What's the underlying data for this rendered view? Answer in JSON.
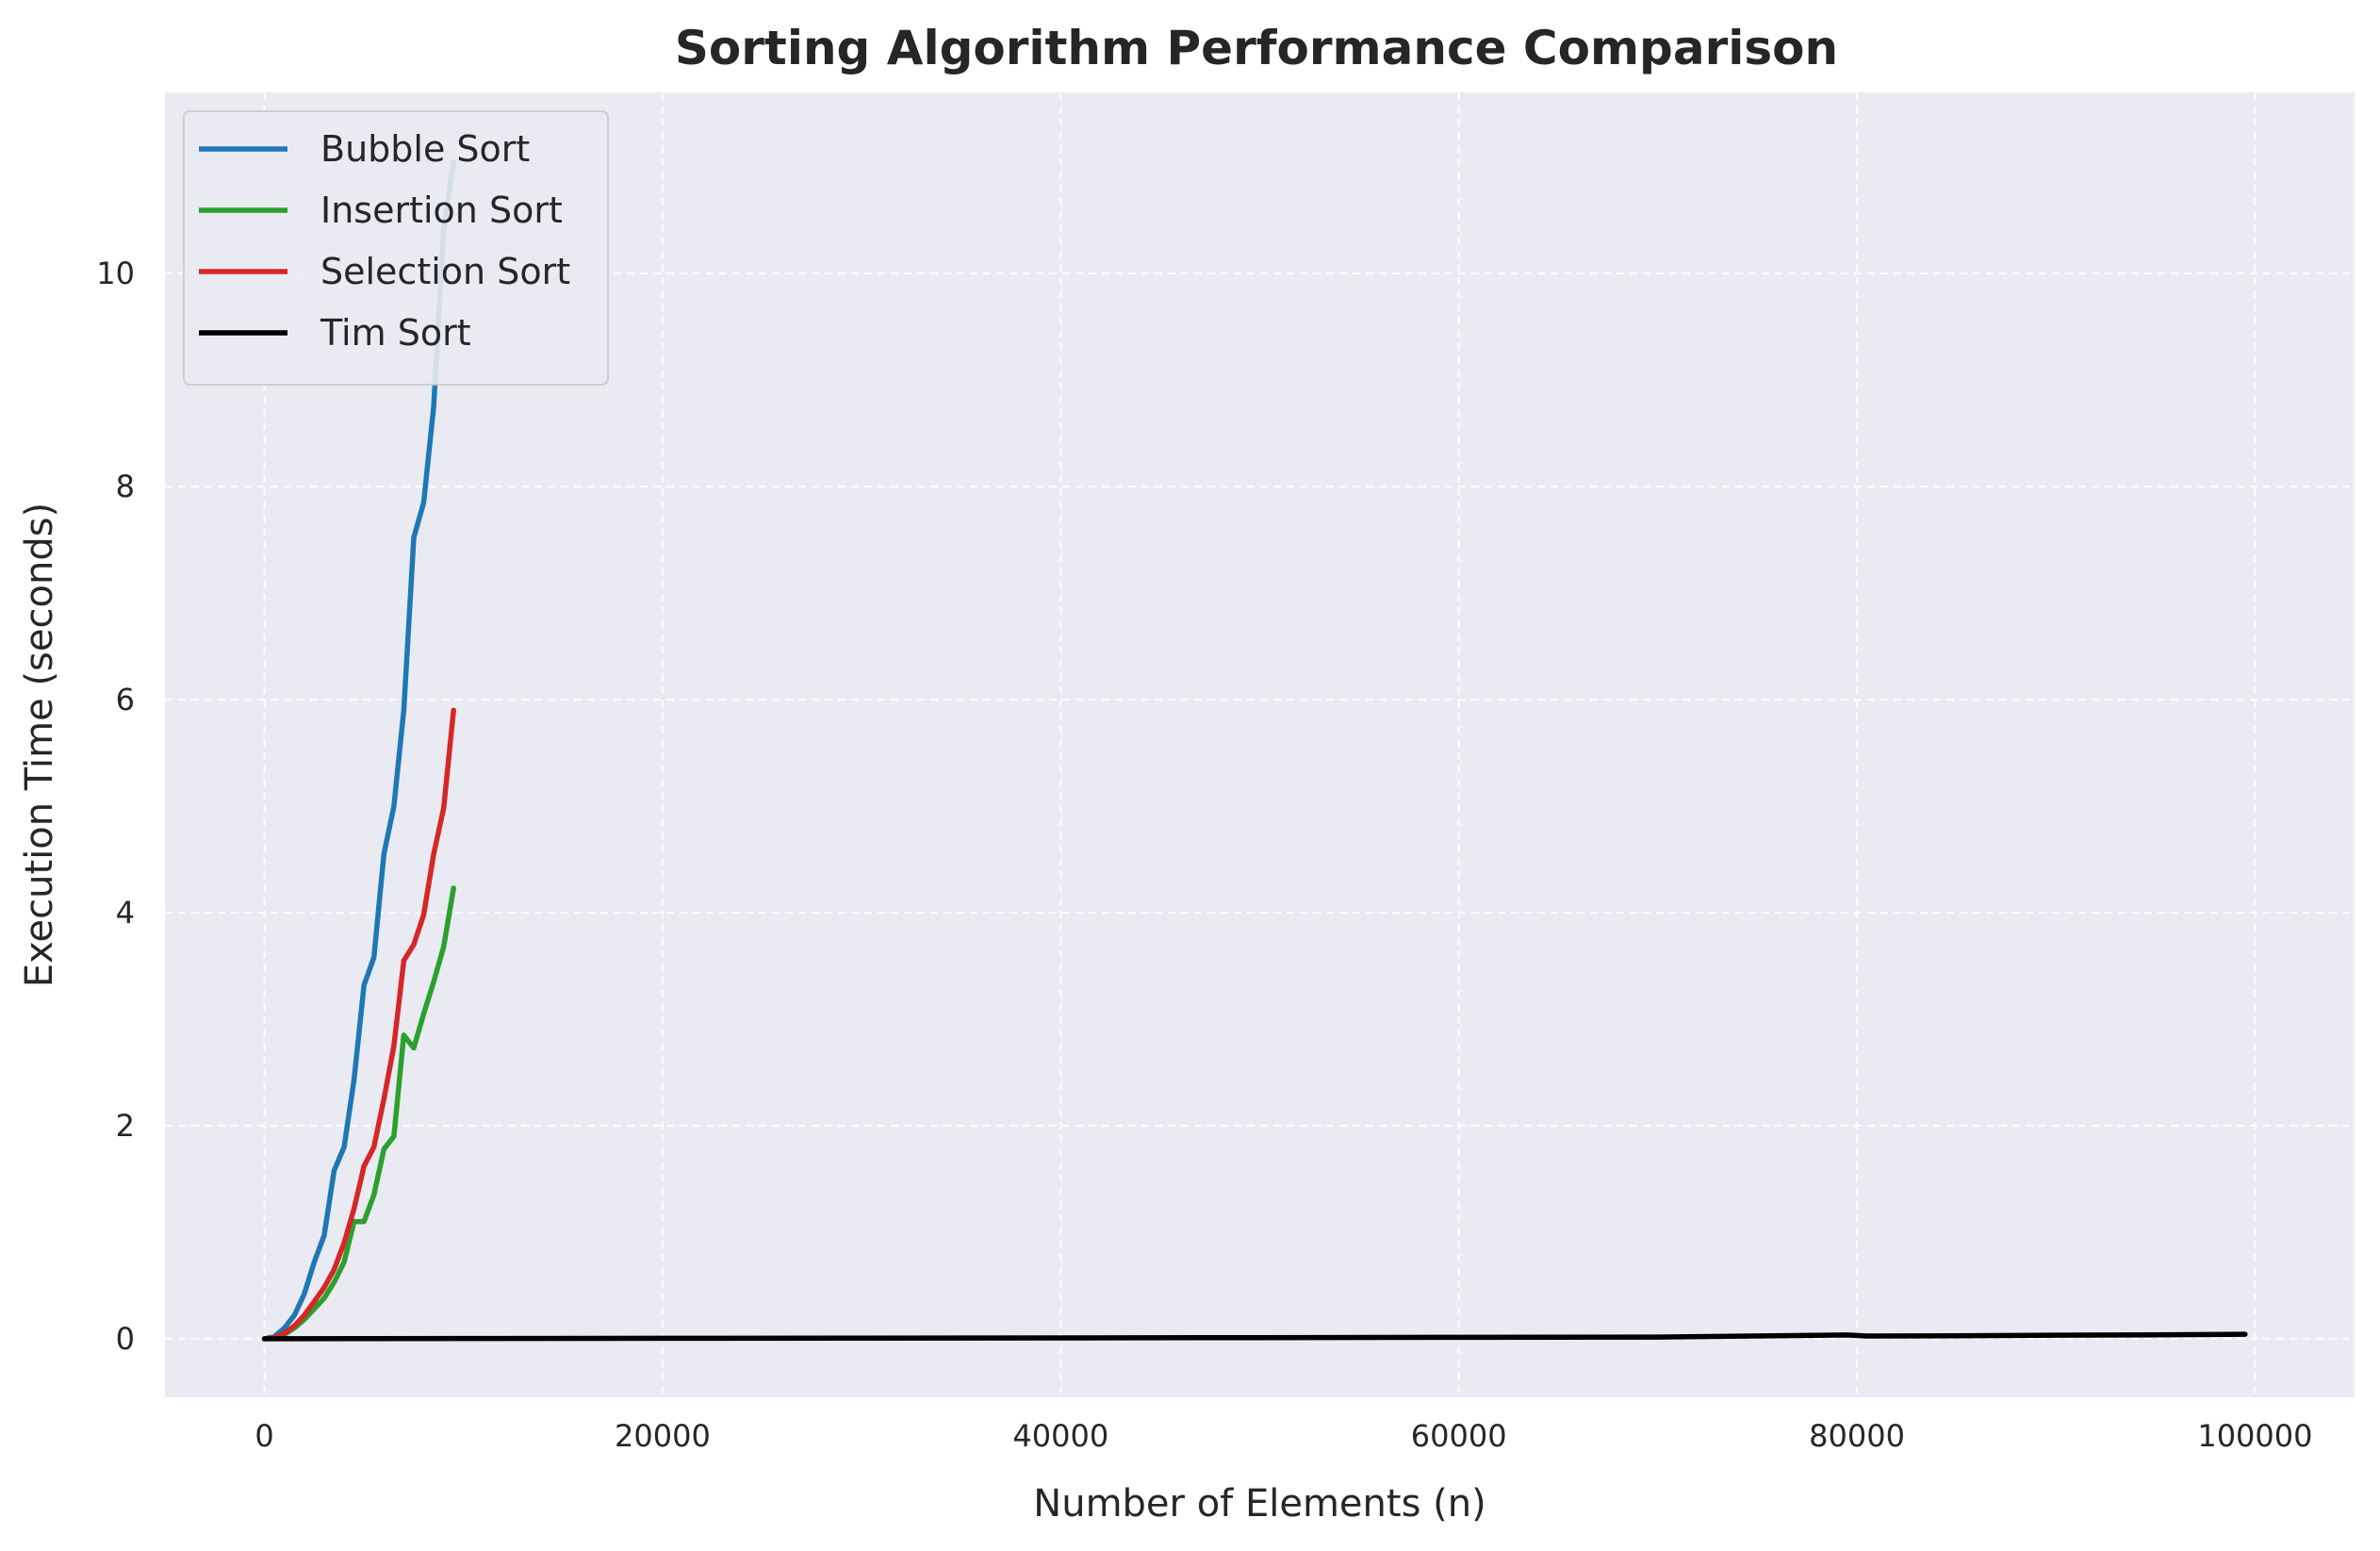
{
  "chart_data": {
    "type": "line",
    "title": "Sorting Algorithm Performance Comparison",
    "xlabel": "Number of Elements (n)",
    "ylabel": "Execution Time (seconds)",
    "xlim": [
      -5000,
      105000
    ],
    "ylim": [
      -0.55,
      11.7
    ],
    "xticks": [
      0,
      20000,
      40000,
      60000,
      80000,
      100000
    ],
    "yticks": [
      0,
      2,
      4,
      6,
      8,
      10
    ],
    "grid": true,
    "legend_position": "top-left",
    "series": [
      {
        "name": "Bubble Sort",
        "color": "#1f77b4",
        "x": [
          0,
          500,
          1000,
          1500,
          2000,
          2500,
          3000,
          3500,
          4000,
          4500,
          5000,
          5500,
          6000,
          6500,
          7000,
          7500,
          8000,
          8500,
          9000,
          9500
        ],
        "y": [
          0,
          0.02,
          0.1,
          0.22,
          0.42,
          0.72,
          0.97,
          1.58,
          1.8,
          2.43,
          3.32,
          3.58,
          4.55,
          5.0,
          5.9,
          7.52,
          7.85,
          8.75,
          10.4,
          11.05
        ]
      },
      {
        "name": "Insertion Sort",
        "color": "#2ca02c",
        "x": [
          0,
          500,
          1000,
          1500,
          2000,
          2500,
          3000,
          3500,
          4000,
          4500,
          5000,
          5500,
          6000,
          6500,
          7000,
          7500,
          8000,
          8500,
          9000,
          9500
        ],
        "y": [
          0,
          0.01,
          0.04,
          0.1,
          0.18,
          0.28,
          0.38,
          0.53,
          0.72,
          1.1,
          1.1,
          1.35,
          1.78,
          1.9,
          2.85,
          2.73,
          3.05,
          3.35,
          3.68,
          4.23
        ]
      },
      {
        "name": "Selection Sort",
        "color": "#d62728",
        "x": [
          0,
          500,
          1000,
          1500,
          2000,
          2500,
          3000,
          3500,
          4000,
          4500,
          5000,
          5500,
          6000,
          6500,
          7000,
          7500,
          8000,
          8500,
          9000,
          9500
        ],
        "y": [
          0,
          0.01,
          0.05,
          0.12,
          0.22,
          0.35,
          0.48,
          0.65,
          0.9,
          1.22,
          1.62,
          1.8,
          2.25,
          2.75,
          3.55,
          3.7,
          3.98,
          4.55,
          4.98,
          5.9
        ]
      },
      {
        "name": "Tim Sort",
        "color": "#000000",
        "x": [
          0,
          5000,
          10000,
          20000,
          30000,
          40000,
          50000,
          60000,
          70000,
          79500,
          80500,
          85000,
          90000,
          95000,
          99500
        ],
        "y": [
          0,
          0.001,
          0.002,
          0.004,
          0.006,
          0.008,
          0.01,
          0.013,
          0.016,
          0.035,
          0.025,
          0.028,
          0.033,
          0.037,
          0.042
        ]
      }
    ]
  }
}
